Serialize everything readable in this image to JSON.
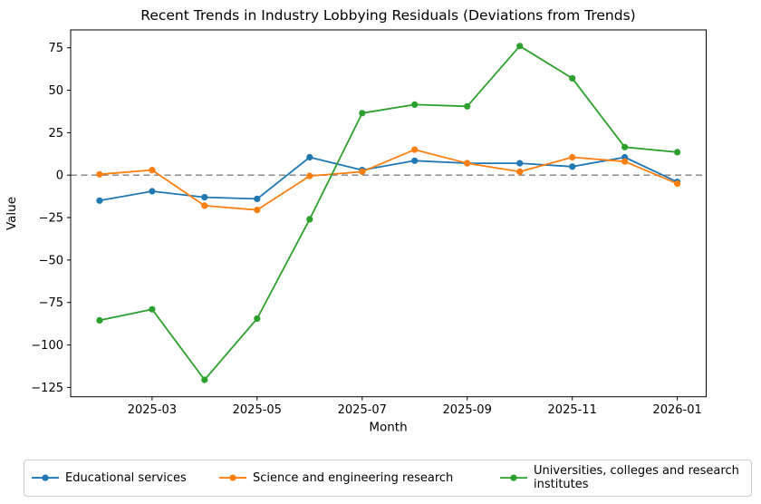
{
  "chart_data": {
    "type": "line",
    "title": "Recent Trends in Industry Lobbying Residuals (Deviations from Trends)",
    "xlabel": "Month",
    "ylabel": "Value",
    "x": [
      "2025-02",
      "2025-03",
      "2025-04",
      "2025-05",
      "2025-06",
      "2025-07",
      "2025-08",
      "2025-09",
      "2025-10",
      "2025-11",
      "2025-12",
      "2026-01"
    ],
    "series": [
      {
        "name": "Educational services",
        "color": "#1f77b4",
        "values": [
          -15,
          -9.5,
          -13,
          -14,
          10.5,
          3,
          8.5,
          7,
          7,
          5,
          10.5,
          -4
        ]
      },
      {
        "name": "Science and engineering research",
        "color": "#ff7f0e",
        "values": [
          0.5,
          3,
          -18,
          -20.5,
          -0.5,
          2,
          15,
          7,
          2,
          10.5,
          8,
          -5
        ]
      },
      {
        "name": "Universities, colleges and research institutes",
        "color": "#2ca02c",
        "values": [
          -85.5,
          -79,
          -120.5,
          -84.5,
          -26,
          36.5,
          41.5,
          40.5,
          76,
          57,
          16.5,
          13.5
        ]
      }
    ],
    "x_ticks": [
      {
        "index": 1,
        "label": "2025-03"
      },
      {
        "index": 3,
        "label": "2025-05"
      },
      {
        "index": 5,
        "label": "2025-07"
      },
      {
        "index": 7,
        "label": "2025-09"
      },
      {
        "index": 9,
        "label": "2025-11"
      },
      {
        "index": 11,
        "label": "2026-01"
      }
    ],
    "y_ticks": [
      -125,
      -100,
      -75,
      -50,
      -25,
      0,
      25,
      50,
      75
    ],
    "xlim": [
      -0.55,
      11.55
    ],
    "ylim": [
      -130.5,
      85.5
    ],
    "grid": false,
    "zero_line": {
      "y": 0,
      "color": "#808080",
      "style": "dashed"
    },
    "legend_position": "lower center outside",
    "colors": {
      "spine": "#000000",
      "tick_text": "#000000",
      "background": "#ffffff",
      "legend_border": "#cccccc"
    }
  }
}
